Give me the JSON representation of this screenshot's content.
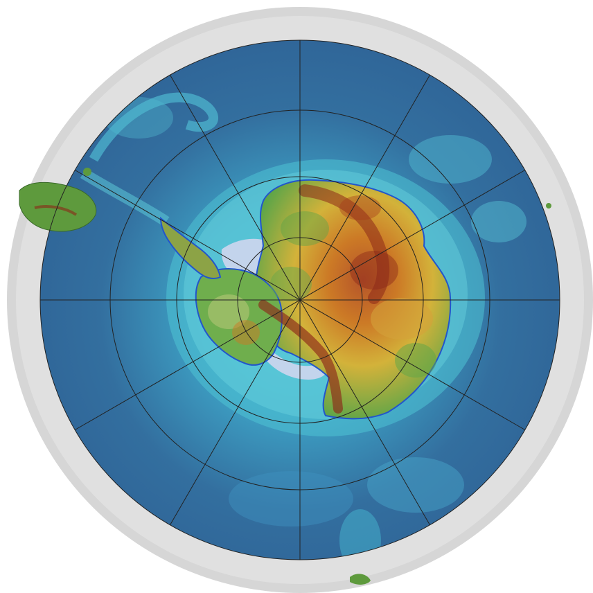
{
  "map": {
    "projection": "south-polar-stereographic",
    "graticule": {
      "latitude_circles": 4,
      "meridian_count": 12,
      "meridian_interval_deg": 30
    },
    "colors": {
      "background": "#ffffff",
      "relief_rim": "#d4d4d4",
      "deep_ocean": "#2f6497",
      "mid_ocean": "#3c86b4",
      "shallow_ocean": "#46c3d6",
      "shelf": "#7ae0e6",
      "ice_shelf": "#c3d4ec",
      "coastline": "#2255cc",
      "lowland": "#4e9c48",
      "upland": "#d3b23a",
      "highland": "#cc7a26",
      "summit": "#8c2818",
      "graticule": "#222222"
    },
    "features": {
      "continent": "antarctica-icon",
      "peninsula": "peninsula-icon",
      "south_america": "landmass-icon",
      "new_zealand": "island-icon"
    }
  }
}
